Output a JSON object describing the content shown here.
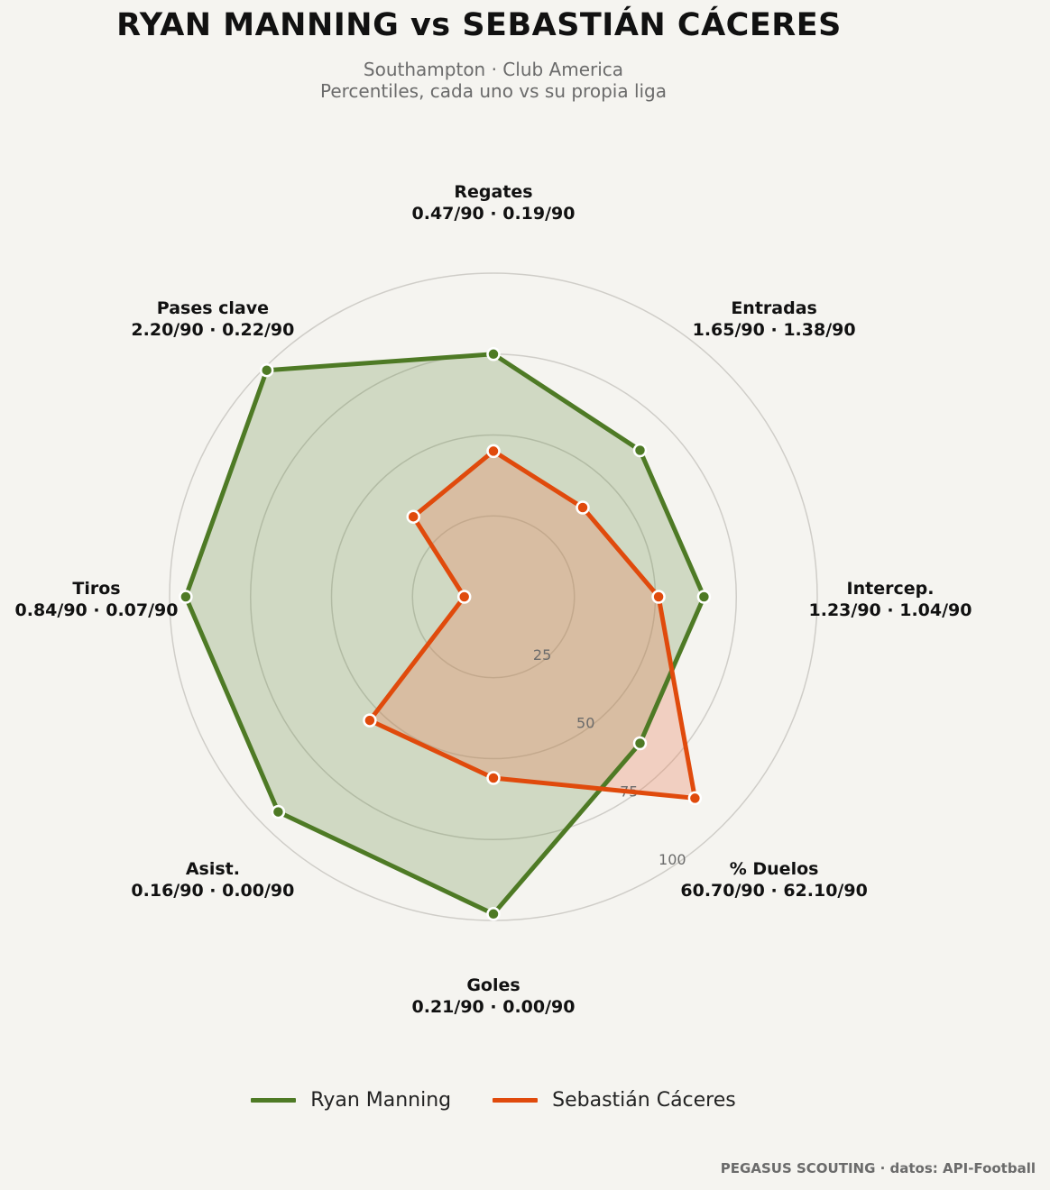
{
  "header": {
    "title": "RYAN MANNING  vs  SEBASTIÁN CÁCERES",
    "subtitle_line1": "Southampton · Club America",
    "subtitle_line2": "Percentiles, cada uno vs su propia liga"
  },
  "chart_data": {
    "type": "radar",
    "rlim": [
      0,
      100
    ],
    "rticks": [
      25,
      50,
      75,
      100
    ],
    "grid": true,
    "legend_placement": "bottom-center",
    "axes": [
      {
        "name": "Regates",
        "values_text": "0.47/90 · 0.19/90"
      },
      {
        "name": "Entradas",
        "values_text": "1.65/90 · 1.38/90"
      },
      {
        "name": "Intercep.",
        "values_text": "1.23/90 · 1.04/90"
      },
      {
        "name": "% Duelos",
        "values_text": "60.70/90 · 62.10/90"
      },
      {
        "name": "Goles",
        "values_text": "0.21/90 · 0.00/90"
      },
      {
        "name": "Asist.",
        "values_text": "0.16/90 · 0.00/90"
      },
      {
        "name": "Tiros",
        "values_text": "0.84/90 · 0.07/90"
      },
      {
        "name": "Pases clave",
        "values_text": "2.20/90 · 0.22/90"
      }
    ],
    "series": [
      {
        "name": "Ryan Manning",
        "color": "#4e7a25",
        "fill": "#4e7a25",
        "values": [
          75,
          64,
          65,
          64,
          98,
          94,
          95,
          99
        ]
      },
      {
        "name": "Sebastián Cáceres",
        "color": "#e04a0c",
        "fill": "#e8825e",
        "values": [
          45,
          39,
          51,
          88,
          56,
          54,
          9,
          35
        ]
      }
    ]
  },
  "footer": {
    "credit": "PEGASUS SCOUTING · datos: API-Football"
  }
}
